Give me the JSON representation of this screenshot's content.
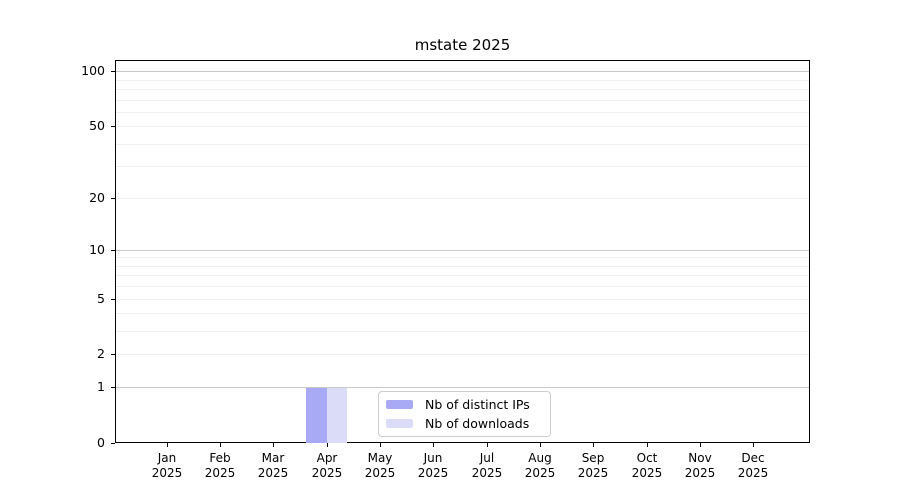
{
  "chart_data": {
    "type": "bar",
    "title": "mstate 2025",
    "xlabel": "",
    "ylabel": "",
    "categories": [
      "Jan",
      "Feb",
      "Mar",
      "Apr",
      "May",
      "Jun",
      "Jul",
      "Aug",
      "Sep",
      "Oct",
      "Nov",
      "Dec"
    ],
    "category_year": "2025",
    "series": [
      {
        "name": "Nb of distinct IPs",
        "color": "#a9aaf6",
        "values": [
          0,
          0,
          0,
          1,
          0,
          0,
          0,
          0,
          0,
          0,
          0,
          0
        ]
      },
      {
        "name": "Nb of downloads",
        "color": "#dbdcf8",
        "values": [
          0,
          0,
          0,
          1,
          0,
          0,
          0,
          0,
          0,
          0,
          0,
          0
        ]
      }
    ],
    "y_scale": "log1p",
    "ylim": [
      0,
      115
    ],
    "y_ticks": [
      0,
      1,
      2,
      5,
      10,
      20,
      50,
      100
    ],
    "y_minor_ticks": [
      3,
      4,
      6,
      7,
      8,
      9,
      30,
      40,
      60,
      70,
      80,
      90
    ],
    "grid": "horizontal",
    "legend_position": "inside-bottom-center",
    "grid_major_color": "#c9c9c9",
    "grid_minor_color": "#efefef"
  }
}
